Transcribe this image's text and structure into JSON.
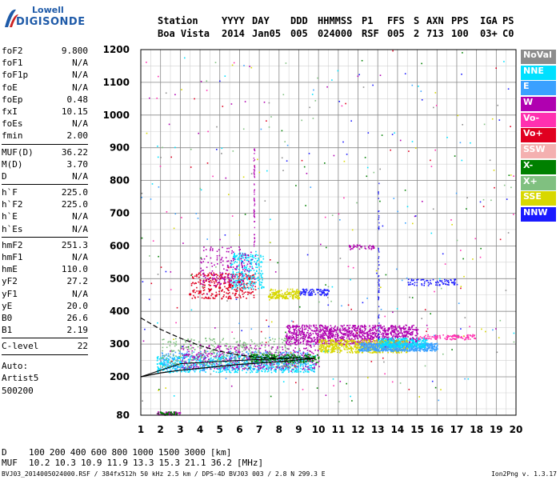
{
  "logo": {
    "line1": "Lowell",
    "line2": "DIGISONDE"
  },
  "header": {
    "row1": [
      "Station",
      "YYYY",
      "DAY",
      "DDD",
      "HHMMSS",
      "P1",
      "FFS",
      "S",
      "AXN",
      "PPS",
      "IGA",
      "PS"
    ],
    "row2": [
      "Boa Vista",
      "2014",
      "Jan05",
      "005",
      "024000",
      "RSF",
      "005",
      "2",
      "713",
      "100",
      "03+",
      "C0"
    ]
  },
  "params": {
    "group1": [
      {
        "name": "foF2",
        "value": "9.800"
      },
      {
        "name": "foF1",
        "value": "N/A"
      },
      {
        "name": "foF1p",
        "value": "N/A"
      },
      {
        "name": "foE",
        "value": "N/A"
      },
      {
        "name": "foEp",
        "value": "0.48"
      },
      {
        "name": "fxI",
        "value": "10.15"
      },
      {
        "name": "foEs",
        "value": "N/A"
      },
      {
        "name": "fmin",
        "value": "2.00"
      }
    ],
    "group2": [
      {
        "name": "MUF(D)",
        "value": "36.22"
      },
      {
        "name": "M(D)",
        "value": "3.70"
      },
      {
        "name": "D",
        "value": "N/A"
      }
    ],
    "group3": [
      {
        "name": "h`F",
        "value": "225.0"
      },
      {
        "name": "h`F2",
        "value": "225.0"
      },
      {
        "name": "h`E",
        "value": "N/A"
      },
      {
        "name": "h`Es",
        "value": "N/A"
      }
    ],
    "group4": [
      {
        "name": "hmF2",
        "value": "251.3"
      },
      {
        "name": "hmF1",
        "value": "N/A"
      },
      {
        "name": "hmE",
        "value": "110.0"
      },
      {
        "name": "yF2",
        "value": "27.2"
      },
      {
        "name": "yF1",
        "value": "N/A"
      },
      {
        "name": "yE",
        "value": "20.0"
      },
      {
        "name": "B0",
        "value": "26.6"
      },
      {
        "name": "B1",
        "value": "2.19"
      }
    ],
    "group5": [
      {
        "name": "C-level",
        "value": "22"
      }
    ],
    "auto": [
      "Auto:",
      "Artist5",
      "500200"
    ]
  },
  "legend": [
    {
      "label": "NoVal",
      "color": "#8c8c8c"
    },
    {
      "label": "NNE",
      "color": "#00e0ff"
    },
    {
      "label": "E",
      "color": "#3aa0ff"
    },
    {
      "label": "W",
      "color": "#b000b0"
    },
    {
      "label": "Vo-",
      "color": "#ff30b0"
    },
    {
      "label": "Vo+",
      "color": "#e00020"
    },
    {
      "label": "SSW",
      "color": "#f4b0b0"
    },
    {
      "label": "X-",
      "color": "#008000"
    },
    {
      "label": "X+",
      "color": "#80c080"
    },
    {
      "label": "SSE",
      "color": "#d8d800"
    },
    {
      "label": "NNW",
      "color": "#1a1aff"
    }
  ],
  "bottom": {
    "d_label": "D",
    "d_values": [
      "100",
      "200",
      "400",
      "600",
      "800",
      "1000",
      "1500",
      "3000",
      "[km]"
    ],
    "muf_label": "MUF",
    "muf_values": [
      "10.2",
      "10.3",
      "10.9",
      "11.9",
      "13.3",
      "15.3",
      "21.1",
      "36.2",
      "[MHz]"
    ]
  },
  "footer": {
    "text": "BVJ03_2014005024000.RSF / 384fx512h 50 kHz 2.5 km / DPS-4D BVJ03 003 / 2.8 N 299.3 E",
    "version": "Ion2Png v. 1.3.17"
  },
  "chart_data": {
    "type": "scatter",
    "xlim": [
      1,
      20
    ],
    "ylim": [
      80,
      1200
    ],
    "xticks": [
      1,
      2,
      3,
      4,
      5,
      6,
      7,
      8,
      9,
      10,
      11,
      12,
      13,
      14,
      15,
      16,
      17,
      18,
      19,
      20
    ],
    "yticks": [
      80,
      200,
      300,
      400,
      500,
      600,
      700,
      800,
      900,
      1000,
      1100,
      1200
    ],
    "grid": true,
    "legend_position": "right",
    "series": [
      {
        "name": "Vo+",
        "x": [
          3.5,
          4.0,
          4.5,
          5.0,
          5.5,
          6.0,
          6.5
        ],
        "y": [
          452,
          458,
          465,
          472,
          480,
          490,
          500
        ]
      },
      {
        "name": "W",
        "x": [
          8.5,
          9.5,
          10.5,
          11.5,
          12.5,
          13.5,
          14.5
        ],
        "y": [
          318,
          320,
          322,
          325,
          328,
          330,
          335
        ]
      },
      {
        "name": "E",
        "x": [
          12.5,
          13.5,
          14.5,
          15.5
        ],
        "y": [
          285,
          290,
          295,
          298
        ]
      },
      {
        "name": "SSE",
        "x": [
          7.5,
          8.0,
          8.5,
          9.0
        ],
        "y": [
          445,
          450,
          455,
          460
        ]
      },
      {
        "name": "NNE",
        "x": [
          2.0,
          3.0,
          4.0,
          5.0,
          6.0
        ],
        "y": [
          240,
          245,
          250,
          255,
          262
        ]
      }
    ],
    "curves": [
      {
        "name": "virtual-height-profile",
        "x": [
          1.0,
          2.0,
          3.0,
          4.0,
          5.0,
          6.0,
          7.0,
          8.0,
          9.0,
          9.8
        ],
        "y": [
          200,
          212,
          220,
          226,
          232,
          238,
          242,
          246,
          252,
          256
        ]
      },
      {
        "name": "upper-trace",
        "x": [
          1.0,
          2.0,
          3.0,
          4.0,
          5.0,
          6.0,
          7.0,
          8.0,
          8.5
        ],
        "y": [
          380,
          345,
          318,
          295,
          278,
          266,
          260,
          256,
          255
        ]
      }
    ]
  }
}
